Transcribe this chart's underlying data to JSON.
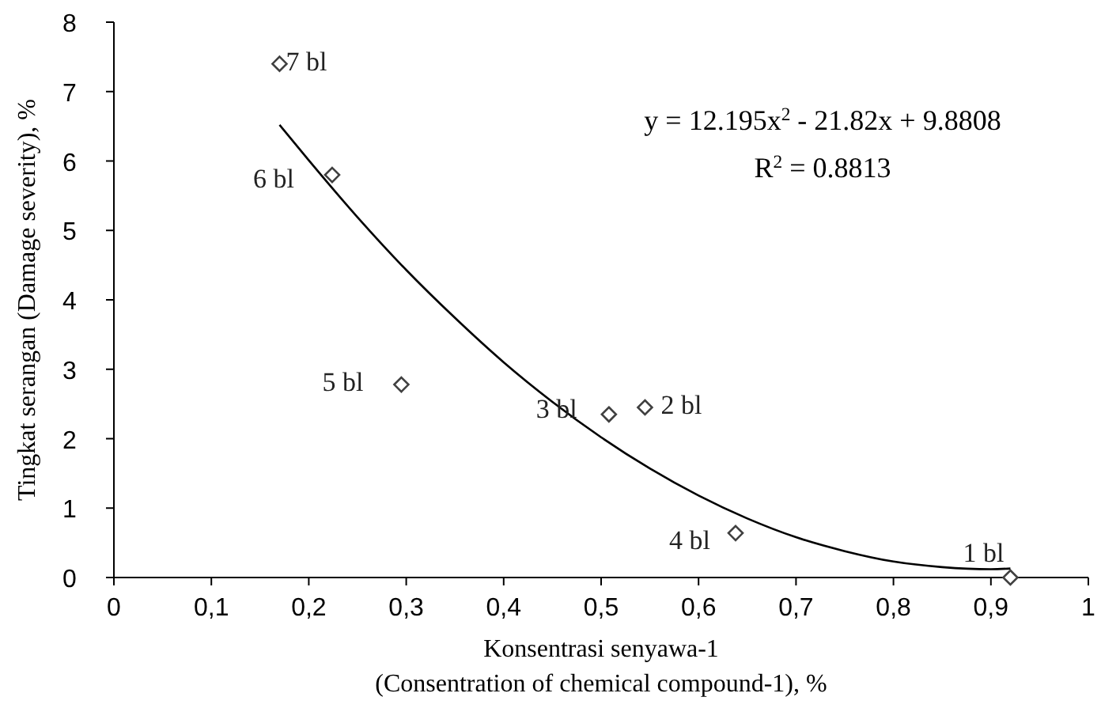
{
  "chart_data": {
    "type": "scatter",
    "xlabel": "Konsentrasi senyawa-1\n(Consentration of chemical compound-1), %",
    "ylabel": "Tingkat serangan (Damage severity), %",
    "xlim": [
      0,
      1
    ],
    "xticks": [
      0,
      {
        "value": 0.1,
        "label": "0,1"
      },
      {
        "value": 0.2,
        "label": "0,2"
      },
      {
        "value": 0.3,
        "label": "0,3"
      },
      {
        "value": 0.4,
        "label": "0,4"
      },
      {
        "value": 0.5,
        "label": "0,5"
      },
      {
        "value": 0.6,
        "label": "0,6"
      },
      {
        "value": 0.7,
        "label": "0,7"
      },
      {
        "value": 0.8,
        "label": "0,8"
      },
      {
        "value": 0.9,
        "label": "0,9"
      },
      1
    ],
    "ylim": [
      0,
      8
    ],
    "yticks": [
      0,
      1,
      2,
      3,
      4,
      5,
      6,
      7,
      8
    ],
    "grid": false,
    "marker": "diamond",
    "series": [
      {
        "color": "#404040",
        "x": [
          0.92,
          0.545,
          0.508,
          0.638,
          0.295,
          0.224,
          0.17
        ],
        "values": [
          0,
          2.45,
          2.35,
          0.64,
          2.78,
          5.8,
          7.4
        ]
      },
      {
        "type": "line",
        "color": "#000000",
        "marker": "none",
        "x": [
          0.17,
          0.2,
          0.25,
          0.3,
          0.35,
          0.4,
          0.45,
          0.5,
          0.55,
          0.6,
          0.65,
          0.7,
          0.75,
          0.8,
          0.85,
          0.9,
          0.92
        ],
        "values": [
          6.52,
          6.01,
          5.19,
          4.43,
          3.74,
          3.1,
          2.53,
          2.02,
          1.57,
          1.18,
          0.85,
          0.58,
          0.38,
          0.23,
          0.15,
          0.12,
          0.13
        ]
      }
    ],
    "annotations": [
      {
        "text": "1 bl",
        "x": 0.92,
        "y": 0
      },
      {
        "text": "2 bl",
        "x": 0.545,
        "y": 2.45
      },
      {
        "text": "3 bl",
        "x": 0.508,
        "y": 2.35
      },
      {
        "text": "4 bl",
        "x": 0.638,
        "y": 0.64
      },
      {
        "text": "5 bl",
        "x": 0.295,
        "y": 2.78
      },
      {
        "text": "6 bl",
        "x": 0.224,
        "y": 5.8
      },
      {
        "text": "7 bl",
        "x": 0.17,
        "y": 7.4
      },
      "y = 12.195x$^{2}$ - 21.82x + 9.8808",
      "R$^{2}$ = 0.8813"
    ]
  }
}
